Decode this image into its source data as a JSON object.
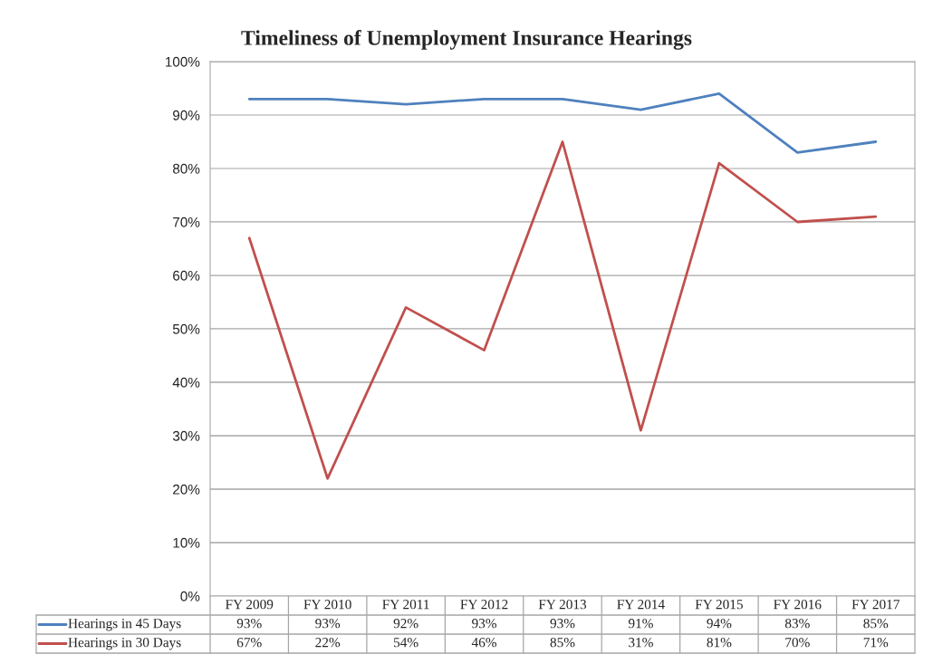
{
  "chart_data": {
    "type": "line",
    "title": "Timeliness of Unemployment Insurance Hearings",
    "categories": [
      "FY 2009",
      "FY 2010",
      "FY 2011",
      "FY 2012",
      "FY 2013",
      "FY 2014",
      "FY 2015",
      "FY 2016",
      "FY 2017"
    ],
    "series": [
      {
        "name": "Hearings in 45 Days",
        "color": "#4f81bd",
        "values": [
          93,
          93,
          92,
          93,
          93,
          91,
          94,
          83,
          85
        ],
        "value_labels": [
          "93%",
          "93%",
          "92%",
          "93%",
          "93%",
          "91%",
          "94%",
          "83%",
          "85%"
        ]
      },
      {
        "name": "Hearings in 30 Days",
        "color": "#c0504d",
        "values": [
          67,
          22,
          54,
          46,
          85,
          31,
          81,
          70,
          71
        ],
        "value_labels": [
          "67%",
          "22%",
          "54%",
          "46%",
          "85%",
          "31%",
          "81%",
          "70%",
          "71%"
        ]
      }
    ],
    "ylim": [
      0,
      100
    ],
    "yticks": [
      {
        "value": 0,
        "label": "0%"
      },
      {
        "value": 10,
        "label": "10%"
      },
      {
        "value": 20,
        "label": "20%"
      },
      {
        "value": 30,
        "label": "30%"
      },
      {
        "value": 40,
        "label": "40%"
      },
      {
        "value": 50,
        "label": "50%"
      },
      {
        "value": 60,
        "label": "60%"
      },
      {
        "value": 70,
        "label": "70%"
      },
      {
        "value": 80,
        "label": "80%"
      },
      {
        "value": 90,
        "label": "90%"
      },
      {
        "value": 100,
        "label": "100%"
      }
    ],
    "grid": "y",
    "legend": "bottom left",
    "marker": "none",
    "line_style": "solid"
  }
}
